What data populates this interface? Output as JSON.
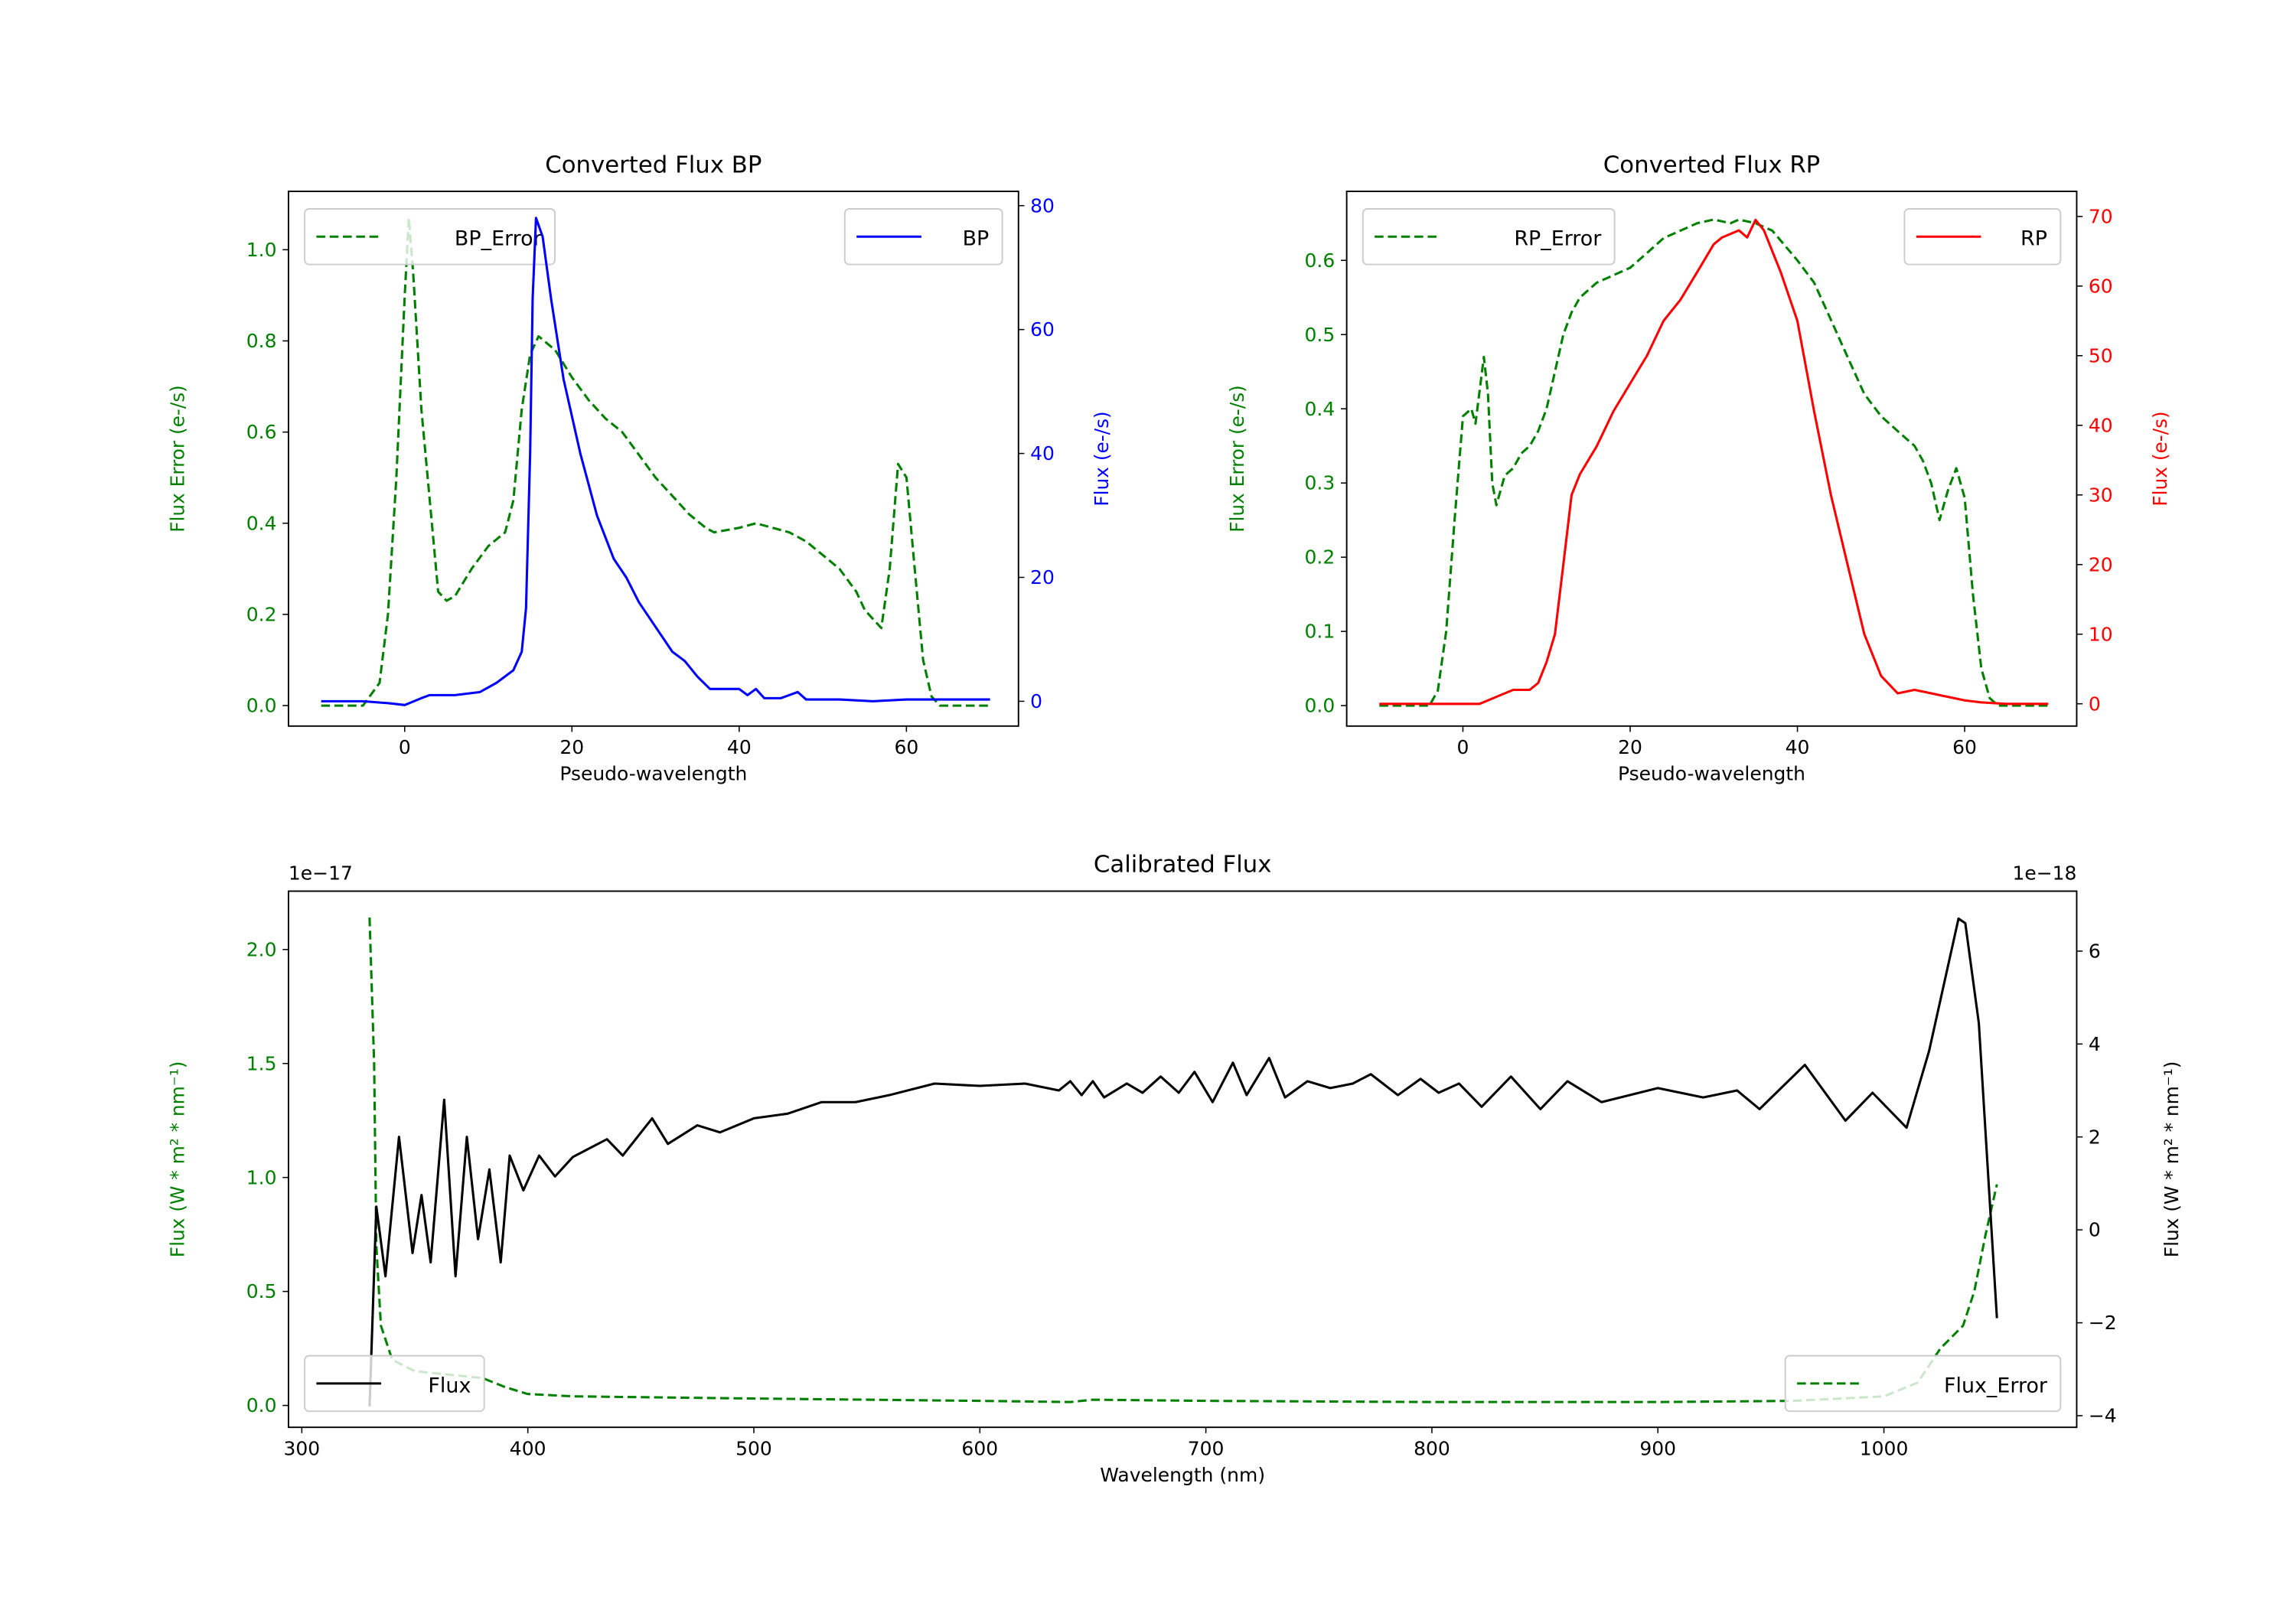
{
  "chart_data": [
    {
      "type": "line",
      "title": "Converted Flux BP",
      "xlabel": "Pseudo-wavelength",
      "ylabel_left": "Flux Error (e-/s)",
      "ylabel_right": "Flux (e-/s)",
      "xlim": [
        -13.9,
        73.4
      ],
      "ylim_left": [
        -0.045,
        1.128
      ],
      "ylim_right": [
        -4.0,
        82.3
      ],
      "xticks": [
        0,
        20,
        40,
        60
      ],
      "yticks_left": [
        0.0,
        0.2,
        0.4,
        0.6,
        0.8,
        1.0
      ],
      "yticks_left_labels": [
        "0.0",
        "0.2",
        "0.4",
        "0.6",
        "0.8",
        "1.0"
      ],
      "yticks_right": [
        0,
        20,
        40,
        60,
        80
      ],
      "colors": {
        "left": "#008000",
        "right": "#0000ff"
      },
      "series": [
        {
          "name": "BP_Error",
          "axis": "left",
          "style": "dashed",
          "color": "#008000",
          "x": [
            -10,
            -5,
            -3,
            -2,
            -1,
            0,
            0.5,
            1,
            2,
            3,
            4,
            5,
            6,
            8,
            10,
            12,
            13,
            14,
            15,
            16,
            18,
            20,
            22,
            24,
            26,
            28,
            30,
            32,
            34,
            36,
            37,
            40,
            42,
            44,
            46,
            48,
            50,
            52,
            54,
            55,
            56,
            57,
            58,
            59,
            60,
            61,
            62,
            63,
            64,
            70
          ],
          "y": [
            0,
            0,
            0.05,
            0.2,
            0.5,
            0.9,
            1.07,
            0.95,
            0.65,
            0.45,
            0.25,
            0.23,
            0.24,
            0.3,
            0.35,
            0.38,
            0.45,
            0.65,
            0.77,
            0.81,
            0.78,
            0.72,
            0.67,
            0.63,
            0.6,
            0.55,
            0.5,
            0.46,
            0.42,
            0.39,
            0.38,
            0.39,
            0.4,
            0.39,
            0.38,
            0.36,
            0.33,
            0.3,
            0.25,
            0.21,
            0.19,
            0.17,
            0.3,
            0.53,
            0.5,
            0.3,
            0.1,
            0.02,
            0,
            0
          ]
        },
        {
          "name": "BP",
          "axis": "right",
          "style": "solid",
          "color": "#0000ff",
          "x": [
            -10,
            -5,
            -2,
            0,
            2,
            3,
            6,
            9,
            11,
            13,
            14,
            14.5,
            15,
            15.3,
            15.7,
            16.5,
            17.5,
            19,
            21,
            23,
            25,
            26.5,
            28,
            30,
            32,
            33.5,
            35,
            36.5,
            38,
            40,
            41,
            42,
            43,
            45,
            47,
            48,
            52,
            56,
            60,
            65,
            70
          ],
          "y": [
            0,
            0,
            -0.3,
            -0.6,
            0.5,
            1,
            1,
            1.5,
            3,
            5,
            8,
            15,
            40,
            65,
            78,
            75,
            65,
            52,
            40,
            30,
            23,
            20,
            16,
            12,
            8,
            6.5,
            4,
            2,
            2,
            2,
            1,
            2,
            0.5,
            0.5,
            1.5,
            0.3,
            0.3,
            0,
            0.3,
            0.3,
            0.3
          ]
        }
      ]
    },
    {
      "type": "line",
      "title": "Converted Flux RP",
      "xlabel": "Pseudo-wavelength",
      "ylabel_left": "Flux Error (e-/s)",
      "ylabel_right": "Flux (e-/s)",
      "xlim": [
        -13.9,
        73.4
      ],
      "ylim_left": [
        -0.0276,
        0.693
      ],
      "ylim_right": [
        -3.2,
        73.6
      ],
      "xticks": [
        0,
        20,
        40,
        60
      ],
      "yticks_left": [
        0.0,
        0.1,
        0.2,
        0.3,
        0.4,
        0.5,
        0.6
      ],
      "yticks_left_labels": [
        "0.0",
        "0.1",
        "0.2",
        "0.3",
        "0.4",
        "0.5",
        "0.6"
      ],
      "yticks_right": [
        0,
        10,
        20,
        30,
        40,
        50,
        60,
        70
      ],
      "colors": {
        "left": "#008000",
        "right": "#ff0000"
      },
      "series": [
        {
          "name": "RP_Error",
          "axis": "left",
          "style": "dashed",
          "color": "#008000",
          "x": [
            -10,
            -4,
            -3,
            -2,
            -1,
            0,
            1,
            1.5,
            2.5,
            3,
            3.5,
            4,
            5,
            6,
            7,
            8,
            9,
            10,
            11,
            12,
            13,
            14,
            16,
            18,
            20,
            22,
            24,
            26,
            28,
            30,
            32,
            33,
            35,
            37,
            40,
            42,
            44,
            46,
            48,
            50,
            52,
            54,
            55,
            56,
            57,
            58,
            59,
            60,
            61,
            62,
            63,
            64,
            70
          ],
          "y": [
            0,
            0,
            0.02,
            0.1,
            0.25,
            0.39,
            0.4,
            0.38,
            0.47,
            0.42,
            0.3,
            0.27,
            0.31,
            0.32,
            0.34,
            0.35,
            0.37,
            0.4,
            0.45,
            0.5,
            0.53,
            0.55,
            0.57,
            0.58,
            0.59,
            0.61,
            0.63,
            0.64,
            0.65,
            0.655,
            0.65,
            0.655,
            0.65,
            0.64,
            0.6,
            0.57,
            0.52,
            0.47,
            0.42,
            0.39,
            0.37,
            0.35,
            0.33,
            0.3,
            0.25,
            0.29,
            0.32,
            0.28,
            0.15,
            0.05,
            0.01,
            0,
            0
          ]
        },
        {
          "name": "RP",
          "axis": "right",
          "style": "solid",
          "color": "#ff0000",
          "x": [
            -10,
            0,
            2,
            4,
            6,
            8,
            9,
            10,
            11,
            12,
            13,
            14,
            16,
            18,
            20,
            22,
            24,
            26,
            28,
            30,
            31,
            33,
            34,
            35,
            36,
            38,
            40,
            42,
            44,
            46,
            48,
            50,
            52,
            54,
            56,
            58,
            60,
            62,
            65,
            70
          ],
          "y": [
            0,
            0,
            0,
            1,
            2,
            2,
            3,
            6,
            10,
            20,
            30,
            33,
            37,
            42,
            46,
            50,
            55,
            58,
            62,
            66,
            67,
            68,
            67,
            69.5,
            68,
            62,
            55,
            42,
            30,
            20,
            10,
            4,
            1.5,
            2,
            1.5,
            1,
            0.5,
            0.2,
            0,
            0
          ]
        }
      ]
    },
    {
      "type": "line",
      "title": "Calibrated Flux",
      "xlabel": "Wavelength (nm)",
      "ylabel_left": "Flux (W * m² * nm⁻¹)",
      "ylabel_right": "Flux (W * m² * nm⁻¹)",
      "offset_left": "1e−17",
      "offset_right": "1e−18",
      "xlim": [
        294.1,
        1085.3
      ],
      "ylim_left": [
        -0.096,
        2.256
      ],
      "ylim_right": [
        -4.25,
        7.29
      ],
      "xticks": [
        300,
        400,
        500,
        600,
        700,
        800,
        900,
        1000
      ],
      "yticks_left": [
        0.0,
        0.5,
        1.0,
        1.5,
        2.0
      ],
      "yticks_left_labels": [
        "0.0",
        "0.5",
        "1.0",
        "1.5",
        "2.0"
      ],
      "yticks_right": [
        -4,
        -2,
        0,
        2,
        4,
        6
      ],
      "yticks_right_labels": [
        "−4",
        "−2",
        "0",
        "2",
        "4",
        "6"
      ],
      "colors": {
        "left": "#008000",
        "right": "#000000"
      },
      "series": [
        {
          "name": "Flux_Error",
          "axis": "left",
          "style": "dashed",
          "color": "#008000",
          "x": [
            330,
            332,
            333,
            335,
            340,
            350,
            380,
            390,
            400,
            420,
            500,
            600,
            640,
            650,
            700,
            800,
            900,
            960,
            1000,
            1015,
            1025,
            1035,
            1040,
            1045,
            1050
          ],
          "y": [
            2.14,
            1.5,
            0.7,
            0.35,
            0.2,
            0.15,
            0.12,
            0.08,
            0.05,
            0.04,
            0.03,
            0.02,
            0.015,
            0.025,
            0.02,
            0.015,
            0.015,
            0.02,
            0.04,
            0.1,
            0.25,
            0.35,
            0.5,
            0.75,
            0.97
          ]
        },
        {
          "name": "Flux",
          "axis": "right",
          "style": "solid",
          "color": "#000000",
          "x": [
            330,
            333,
            337,
            343,
            349,
            353,
            357,
            363,
            368,
            373,
            378,
            383,
            388,
            392,
            398,
            405,
            412,
            420,
            435,
            442,
            455,
            462,
            475,
            485,
            500,
            515,
            530,
            545,
            560,
            580,
            600,
            620,
            635,
            640,
            645,
            650,
            655,
            665,
            672,
            680,
            688,
            695,
            703,
            712,
            718,
            728,
            735,
            745,
            755,
            765,
            773,
            785,
            795,
            803,
            812,
            822,
            835,
            848,
            860,
            875,
            900,
            920,
            935,
            945,
            965,
            983,
            995,
            1010,
            1020,
            1033,
            1036,
            1042,
            1050
          ],
          "y": [
            -3.8,
            0.5,
            -1.0,
            2.0,
            -0.5,
            0.75,
            -0.7,
            2.8,
            -1.0,
            2.0,
            -0.2,
            1.3,
            -0.7,
            1.6,
            0.85,
            1.6,
            1.15,
            1.57,
            1.95,
            1.6,
            2.4,
            1.85,
            2.25,
            2.1,
            2.4,
            2.5,
            2.75,
            2.75,
            2.9,
            3.15,
            3.1,
            3.15,
            3.0,
            3.2,
            2.9,
            3.2,
            2.85,
            3.15,
            2.95,
            3.3,
            2.95,
            3.4,
            2.75,
            3.6,
            2.9,
            3.7,
            2.85,
            3.2,
            3.05,
            3.15,
            3.35,
            2.9,
            3.25,
            2.95,
            3.15,
            2.65,
            3.3,
            2.6,
            3.2,
            2.75,
            3.05,
            2.85,
            3.0,
            2.6,
            3.55,
            2.35,
            2.95,
            2.2,
            3.85,
            6.7,
            6.6,
            4.45,
            -1.9
          ]
        }
      ]
    }
  ]
}
